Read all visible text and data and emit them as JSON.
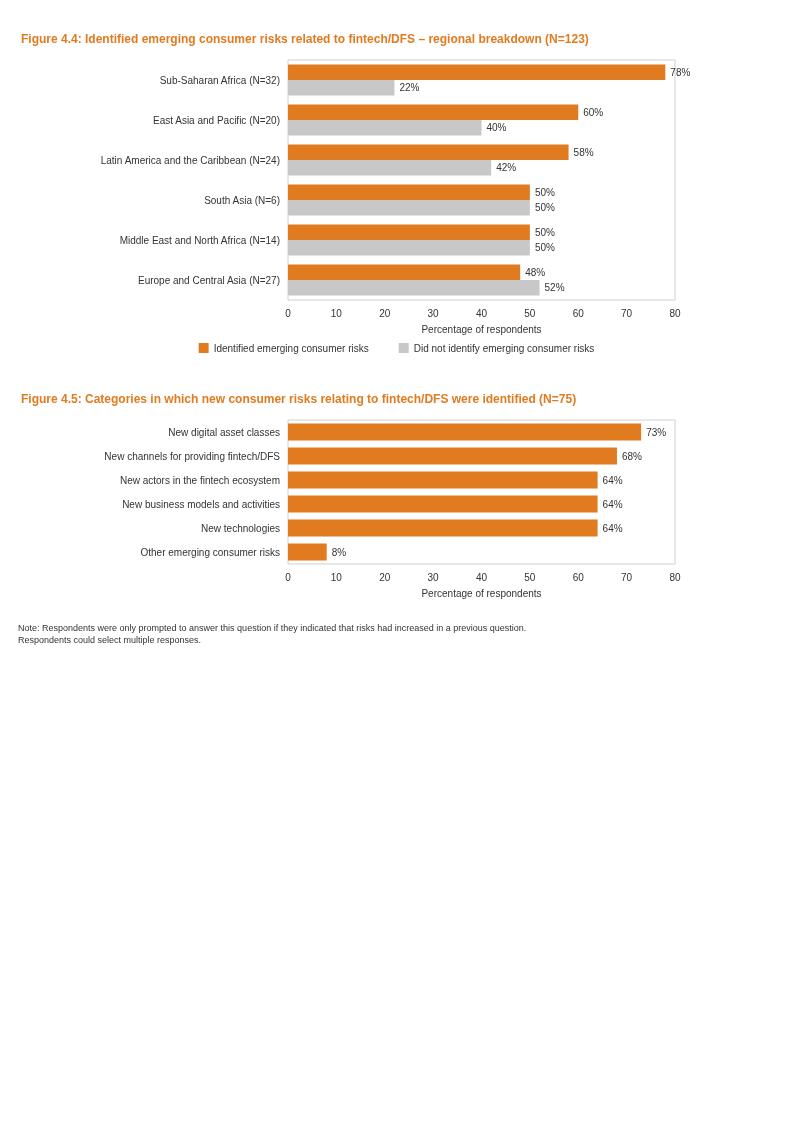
{
  "chart_data": [
    {
      "type": "bar",
      "orientation": "horizontal",
      "title": "Figure 4.4: Identified emerging consumer risks related to fintech/DFS – regional breakdown (N=123)",
      "categories": [
        "Sub-Saharan Africa (N=32)",
        "East Asia and Pacific (N=20)",
        "Latin America and the Caribbean (N=24)",
        "South Asia (N=6)",
        "Middle East and North Africa (N=14)",
        "Europe and Central Asia (N=27)"
      ],
      "series": [
        {
          "name": "Identified emerging consumer risks",
          "color": "#e07b20",
          "values": [
            78,
            60,
            58,
            50,
            50,
            48
          ],
          "value_labels": [
            "78%",
            "60%",
            "58%",
            "50%",
            "50%",
            "48%"
          ]
        },
        {
          "name": "Did not identify emerging consumer risks",
          "color": "#c8c8c8",
          "values": [
            22,
            40,
            42,
            50,
            50,
            52
          ],
          "value_labels": [
            "22%",
            "40%",
            "42%",
            "50%",
            "50%",
            "52%"
          ]
        }
      ],
      "xlim": [
        0,
        80
      ],
      "xticks": [
        0,
        10,
        20,
        30,
        40,
        50,
        60,
        70,
        80
      ],
      "xlabel": "Percentage of respondents",
      "legend": "bottom"
    },
    {
      "type": "bar",
      "orientation": "horizontal",
      "title": "Figure 4.5: Categories in which new consumer risks relating to fintech/DFS were identified (N=75)",
      "categories": [
        "New digital asset classes",
        "New channels for providing fintech/DFS",
        "New actors in the fintech ecosystem",
        "New business models and activities",
        "New technologies",
        "Other emerging consumer risks"
      ],
      "series": [
        {
          "color": "#e07b20",
          "values": [
            73,
            68,
            64,
            64,
            64,
            8
          ],
          "value_labels": [
            "73%",
            "68%",
            "64%",
            "64%",
            "64%",
            "8%"
          ]
        }
      ],
      "xlim": [
        0,
        80
      ],
      "xticks": [
        0,
        10,
        20,
        30,
        40,
        50,
        60,
        70,
        80
      ],
      "xlabel": "Percentage of respondents",
      "annotations": [
        "Note: Respondents were only prompted to answer this question if they indicated that risks had increased in a previous question.",
        "Respondents could select multiple responses."
      ]
    }
  ]
}
